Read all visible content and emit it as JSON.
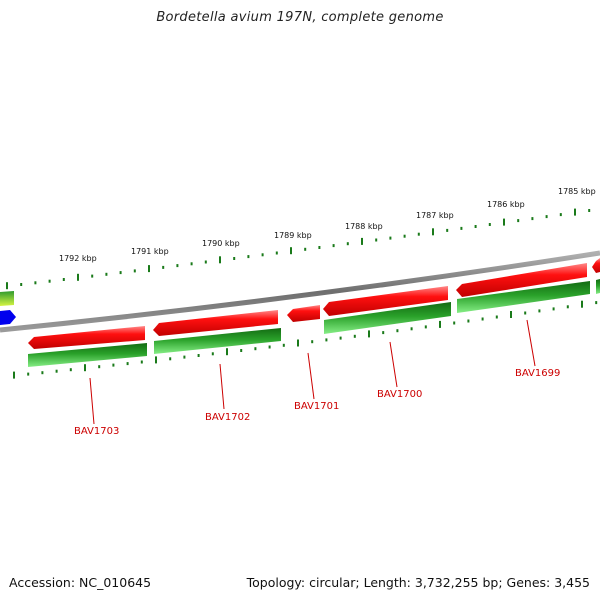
{
  "title": "Bordetella avium 197N, complete genome",
  "footer": {
    "accession": "Accession: NC_010645",
    "summary": "Topology: circular; Length: 3,732,255 bp; Genes: 3,455"
  },
  "tick_labels": [
    "1785 kbp",
    "1786 kbp",
    "1787 kbp",
    "1788 kbp",
    "1789 kbp",
    "1790 kbp",
    "1791 kbp",
    "1792 kbp"
  ],
  "genes": [
    {
      "name": "BAV1699",
      "strand": "reverse"
    },
    {
      "name": "BAV1700",
      "strand": "reverse"
    },
    {
      "name": "BAV1701",
      "strand": "reverse"
    },
    {
      "name": "BAV1702",
      "strand": "reverse"
    },
    {
      "name": "BAV1703",
      "strand": "reverse"
    }
  ],
  "colors": {
    "gene_red": "#e40000",
    "gene_red_light": "#ff6b6b",
    "gene_green": "#1f8a1f",
    "gene_green_light": "#6fe06f",
    "backbone": "#7a7a7a",
    "tick": "#1a7a1a",
    "label_red": "#cc0000",
    "blue_feature": "#0000ee"
  }
}
